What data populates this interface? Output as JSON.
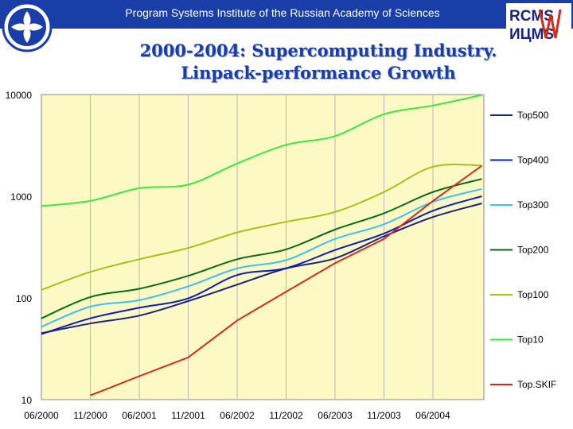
{
  "header": {
    "institute": "Program Systems Institute of the Russian Academy of Sciences",
    "logo_right_top": "RCMS",
    "logo_right_bottom": "ИЦМS",
    "brand_color": "#1a3ea8"
  },
  "slide_title_line1": "2000-2004: Supercomputing Industry.",
  "slide_title_line2": "Linpack-performance Growth",
  "chart_data": {
    "type": "line",
    "title": "",
    "xlabel": "",
    "ylabel": "",
    "y_scale": "log",
    "ylim": [
      10,
      10000
    ],
    "y_ticks": [
      "10",
      "100",
      "1000",
      "10000"
    ],
    "x_ticks": [
      "06/2000",
      "11/2000",
      "06/2001",
      "11/2001",
      "06/2002",
      "11/2002",
      "06/2003",
      "11/2003",
      "06/2004"
    ],
    "x": [
      "06/2000",
      "11/2000",
      "06/2001",
      "11/2001",
      "06/2002",
      "11/2002",
      "06/2003",
      "11/2003",
      "06/2004",
      "11/2004"
    ],
    "plot_background": "#fcf9c4",
    "grid": "vertical",
    "legend_position": "right",
    "series": [
      {
        "name": "Top500",
        "color": "#1a237e",
        "values": [
          45,
          56,
          67,
          93,
          135,
          195,
          245,
          403,
          624,
          850
        ]
      },
      {
        "name": "Top400",
        "color": "#0d1db8",
        "values": [
          44,
          63,
          80,
          99,
          168,
          196,
          296,
          430,
          720,
          1000
        ]
      },
      {
        "name": "Top300",
        "color": "#3ec0f0",
        "values": [
          52,
          82,
          95,
          130,
          195,
          235,
          380,
          530,
          880,
          1180
        ]
      },
      {
        "name": "Top200",
        "color": "#0b6a1a",
        "values": [
          63,
          102,
          123,
          165,
          240,
          300,
          470,
          680,
          1100,
          1480
        ]
      },
      {
        "name": "Top100",
        "color": "#a6c21a",
        "values": [
          120,
          180,
          240,
          310,
          440,
          560,
          700,
          1100,
          1950,
          2010
        ]
      },
      {
        "name": "Top10",
        "color": "#3ee63e",
        "values": [
          800,
          900,
          1200,
          1300,
          2100,
          3200,
          3900,
          6400,
          7800,
          9900
        ]
      },
      {
        "name": "Top.SKIF",
        "color": "#d42a1a",
        "values": [
          null,
          11,
          17,
          26,
          60,
          115,
          220,
          380,
          900,
          2000
        ]
      }
    ]
  }
}
